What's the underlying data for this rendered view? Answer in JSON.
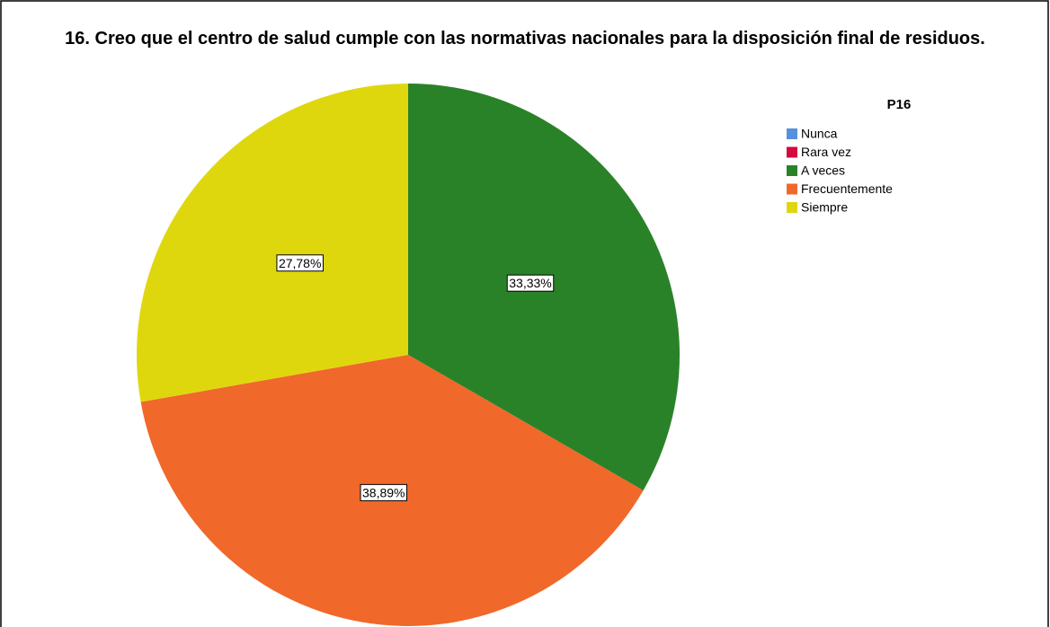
{
  "chart_data": {
    "type": "pie",
    "title": "16. Creo que el centro de salud cumple con las normativas nacionales para la disposición final de residuos.",
    "legend_title": "P16",
    "legend": "top-right",
    "categories": [
      "Nunca",
      "Rara vez",
      "A veces",
      "Frecuentemente",
      "Siempre"
    ],
    "values": [
      0,
      0,
      33.33,
      38.89,
      27.78
    ],
    "value_labels": [
      null,
      null,
      "33,33%",
      "38,89%",
      "27,78%"
    ],
    "colors": [
      "#5591dc",
      "#d4093c",
      "#2a8228",
      "#f0682a",
      "#dfd70e"
    ]
  }
}
